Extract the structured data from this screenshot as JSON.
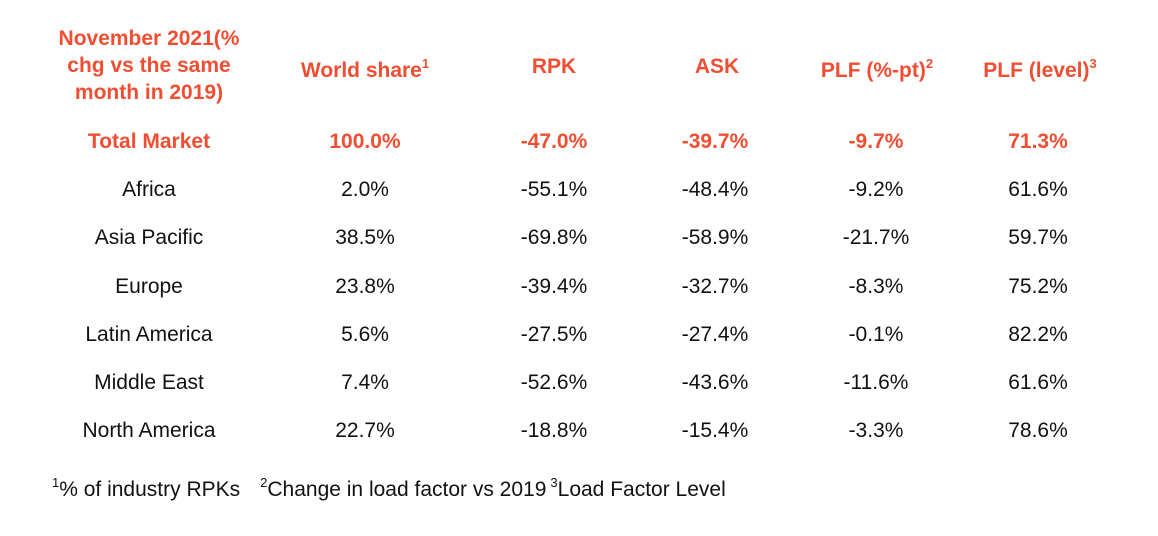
{
  "header": {
    "region_col": "November 2021(% chg vs the same month in 2019)",
    "region_col_lines": [
      "November 2021(%",
      "chg vs the same",
      "month in 2019)"
    ],
    "world_share": "World share",
    "world_share_sup": "1",
    "rpk": "RPK",
    "ask": "ASK",
    "plf_pt": "PLF (%-pt)",
    "plf_pt_sup": "2",
    "plf_level": "PLF (level)",
    "plf_level_sup": "3"
  },
  "colors": {
    "accent": "#f04e32",
    "text": "#111111"
  },
  "chart_data": {
    "type": "table",
    "columns": [
      "November 2021(% chg vs the same month in 2019)",
      "World share",
      "RPK",
      "ASK",
      "PLF (%-pt)",
      "PLF (level)"
    ],
    "rows": [
      {
        "region": "Total Market",
        "world_share": "100.0%",
        "rpk": "-47.0%",
        "ask": "-39.7%",
        "plf_pt": "-9.7%",
        "plf_level": "71.3%",
        "highlight": true
      },
      {
        "region": "Africa",
        "world_share": "2.0%",
        "rpk": "-55.1%",
        "ask": "-48.4%",
        "plf_pt": "-9.2%",
        "plf_level": "61.6%"
      },
      {
        "region": "Asia Pacific",
        "world_share": "38.5%",
        "rpk": "-69.8%",
        "ask": "-58.9%",
        "plf_pt": "-21.7%",
        "plf_level": "59.7%"
      },
      {
        "region": "Europe",
        "world_share": "23.8%",
        "rpk": "-39.4%",
        "ask": "-32.7%",
        "plf_pt": "-8.3%",
        "plf_level": "75.2%"
      },
      {
        "region": "Latin America",
        "world_share": "5.6%",
        "rpk": "-27.5%",
        "ask": "-27.4%",
        "plf_pt": "-0.1%",
        "plf_level": "82.2%"
      },
      {
        "region": "Middle East",
        "world_share": "7.4%",
        "rpk": "-52.6%",
        "ask": "-43.6%",
        "plf_pt": "-11.6%",
        "plf_level": "61.6%"
      },
      {
        "region": "North America",
        "world_share": "22.7%",
        "rpk": "-18.8%",
        "ask": "-15.4%",
        "plf_pt": "-3.3%",
        "plf_level": "78.6%"
      }
    ]
  },
  "footnotes": [
    {
      "sup": "1",
      "text": "% of industry RPKs"
    },
    {
      "sup": "2",
      "text": "Change in load factor vs 2019"
    },
    {
      "sup": "3",
      "text": "Load Factor Level"
    }
  ]
}
